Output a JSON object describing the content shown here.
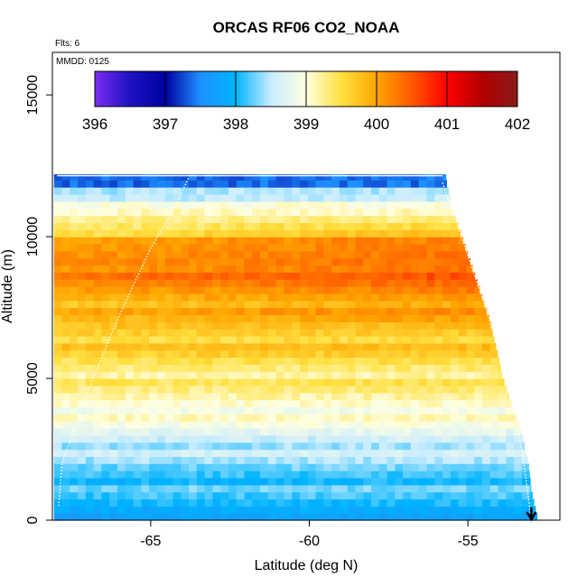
{
  "chart_data": {
    "type": "heatmap",
    "title": "ORCAS RF06 CO2_NOAA",
    "flights_note": "Flts: 6",
    "date_note": "MMDD: 0125",
    "xlabel": "Latitude (deg N)",
    "ylabel": "Altitude (m)",
    "xlim": [
      -68.1,
      -52.1
    ],
    "ylim": [
      0,
      16500
    ],
    "x_ticks": [
      -65,
      -60,
      -55
    ],
    "x_tick_labels": [
      "-65",
      "-60",
      "-55"
    ],
    "y_ticks": [
      0,
      5000,
      10000,
      15000
    ],
    "y_tick_labels": [
      "0",
      "5000",
      "10000",
      "15000"
    ],
    "colorbar": {
      "min": 396,
      "max": 402,
      "ticks": [
        396,
        397,
        398,
        399,
        400,
        401,
        402
      ],
      "tick_labels": [
        "396",
        "397",
        "398",
        "399",
        "400",
        "401",
        "402"
      ],
      "colors": [
        "#7b2cf0",
        "#1d12c2",
        "#0000a0",
        "#1e90ff",
        "#00b4ff",
        "#c8ecff",
        "#ffffe0",
        "#ffe040",
        "#ffa500",
        "#ff5a00",
        "#ff0000",
        "#b00000",
        "#8b1a1a"
      ]
    },
    "x_edge_start_lat": [
      -68.05,
      -68.05,
      -68.05,
      -68.05,
      -68.05,
      -68.05,
      -68.05,
      -68.05,
      -68.05,
      -68.05,
      -68.05,
      -68.05,
      -68.05
    ],
    "x_edge_end_lat": [
      -52.8,
      -53.0,
      -53.1,
      -53.3,
      -53.6,
      -53.9,
      -54.1,
      -54.3,
      -54.6,
      -54.9,
      -55.2,
      -55.5,
      -55.7
    ],
    "profile_altitudes": [
      0,
      1000,
      2000,
      3000,
      4000,
      5000,
      6000,
      7000,
      8000,
      9000,
      10000,
      11000,
      12000
    ],
    "profile_co2": [
      397.9,
      398.1,
      398.3,
      398.7,
      399.1,
      399.3,
      399.6,
      399.8,
      400.1,
      400.4,
      399.9,
      398.9,
      398.3
    ],
    "annotation": "descent arrow at -53.0"
  }
}
